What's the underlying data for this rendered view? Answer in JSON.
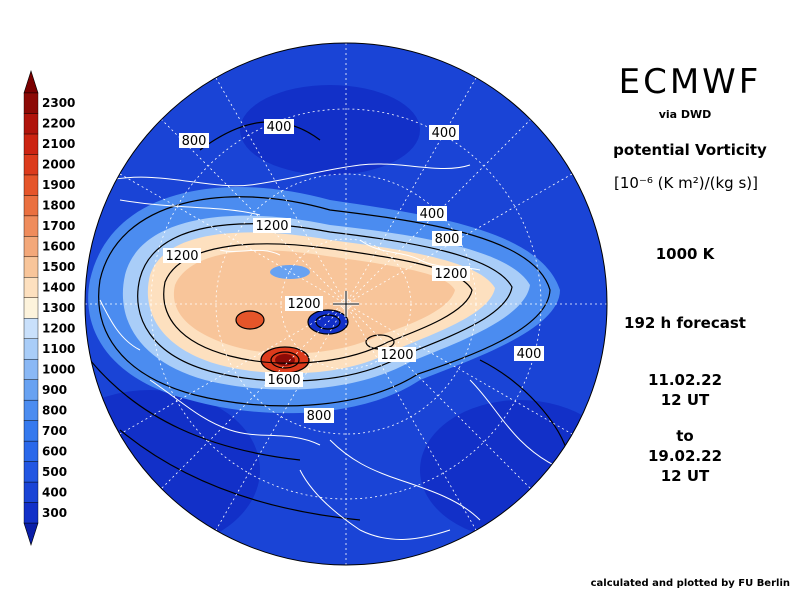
{
  "header": {
    "title": "ECMWF",
    "subtitle": "via DWD",
    "quantity": "potential Vorticity",
    "units": "[10⁻⁶ (K m²)/(kg s)]",
    "level": "1000 K",
    "forecast": "192 h forecast",
    "date_from_line1": "11.02.22",
    "date_from_line2": "12 UT",
    "date_to_label": "to",
    "date_to_line1": "19.02.22",
    "date_to_line2": "12 UT"
  },
  "footer": {
    "credit": "calculated and plotted by FU Berlin"
  },
  "legend": {
    "levels": [
      "300",
      "400",
      "500",
      "600",
      "700",
      "800",
      "900",
      "1000",
      "1100",
      "1200",
      "1300",
      "1400",
      "1500",
      "1600",
      "1700",
      "1800",
      "1900",
      "2000",
      "2100",
      "2200",
      "2300"
    ],
    "colors": [
      "#1230c8",
      "#1a44d6",
      "#2256e2",
      "#2a68ea",
      "#3579ee",
      "#4b8cf0",
      "#68a2f2",
      "#8ab8f5",
      "#a9cdf8",
      "#c9e0fb",
      "#fdf3dc",
      "#fde0bf",
      "#f8c59a",
      "#f3a87a",
      "#ef8c5c",
      "#ea7040",
      "#e5552a",
      "#dc3b1c",
      "#cc2412",
      "#b0140c",
      "#8c0a06"
    ],
    "arrow_low_color": "#0a1ea8",
    "arrow_high_color": "#7a0000"
  },
  "map": {
    "contour_labels": [
      "400",
      "400",
      "400",
      "400",
      "800",
      "800",
      "800",
      "1200",
      "1200",
      "1200",
      "1200",
      "1200",
      "1600"
    ],
    "center_marker": "pole-cross"
  }
}
